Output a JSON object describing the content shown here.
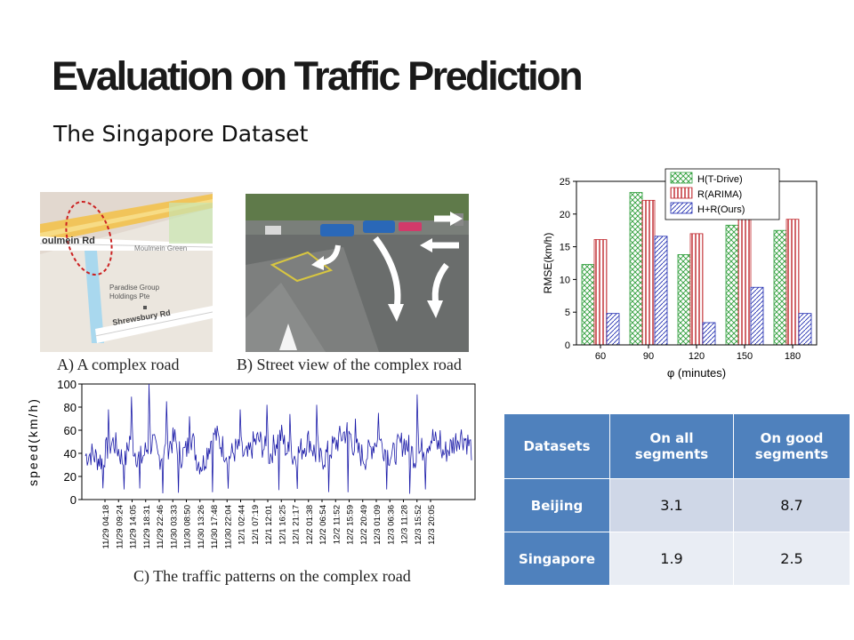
{
  "title": "Evaluation on Traffic Prediction",
  "subtitle": "The Singapore Dataset",
  "figures": {
    "map_labels": {
      "road1": "oulmein Rd",
      "green": "Moulmein Green",
      "group_l1": "Paradise Group",
      "group_l2": "Holdings Pte",
      "road2": "Shrewsbury Rd"
    },
    "caption_a": "A) A complex road",
    "caption_b": "B) Street view of the complex road",
    "caption_c": "C) The traffic patterns on the complex road"
  },
  "colors": {
    "table_header": "#4f81bd",
    "bar_green": "#2e9e3a",
    "bar_red": "#c0262c",
    "bar_blue": "#1f2bb0",
    "speed_line": "#1a1aa8"
  },
  "chart_data": [
    {
      "type": "bar",
      "categories": [
        "60",
        "90",
        "120",
        "150",
        "180"
      ],
      "series": [
        {
          "name": "H(T-Drive)",
          "values": [
            12.3,
            23.3,
            13.8,
            18.3,
            17.5
          ]
        },
        {
          "name": "R(ARIMA)",
          "values": [
            16.1,
            22.1,
            17.0,
            19.6,
            19.2
          ]
        },
        {
          "name": "H+R(Ours)",
          "values": [
            4.8,
            16.6,
            3.4,
            8.8,
            4.8
          ]
        }
      ],
      "xlabel": "φ (minutes)",
      "ylabel": "RMSE(km/h)",
      "ylim": [
        0,
        25
      ],
      "yticks": [
        "0",
        "5",
        "10",
        "15",
        "20",
        "25"
      ],
      "legend": "top"
    },
    {
      "type": "line",
      "ylabel": "speed(km/h)",
      "ylim": [
        0,
        100
      ],
      "yticks": [
        "0",
        "20",
        "40",
        "60",
        "80",
        "100"
      ],
      "xticks": [
        "11/29 04:18",
        "11/29 09:24",
        "11/29 14:05",
        "11/29 18:31",
        "11/29 22:46",
        "11/30 03:33",
        "11/30 08:50",
        "11/30 13:26",
        "11/30 17:48",
        "11/30 22:04",
        "12/1 02:44",
        "12/1 07:19",
        "12/1 12:01",
        "12/1 16:25",
        "12/1 21:17",
        "12/2 01:38",
        "12/2 06:54",
        "12/2 11:52",
        "12/2 15:59",
        "12/2 20:49",
        "12/3 01:09",
        "12/3 06:36",
        "12/3 11:28",
        "12/3 15:52",
        "12/3 20:05"
      ],
      "baseline": [
        38,
        40,
        36,
        34,
        45,
        50,
        42,
        30,
        55,
        40,
        35,
        44,
        50,
        36,
        40,
        48,
        52,
        38,
        42,
        55,
        34,
        30,
        46,
        58,
        50,
        42,
        38,
        44,
        40,
        36,
        48,
        52,
        44,
        38,
        50,
        56,
        42,
        36,
        40,
        46,
        52,
        40,
        34,
        38,
        44,
        50,
        56,
        60,
        46,
        40,
        36,
        44,
        52,
        48,
        40,
        38,
        46,
        50,
        44,
        36,
        42,
        48,
        54,
        46,
        40,
        44,
        50,
        56,
        52,
        44
      ],
      "spikes": [
        {
          "at": 0.06,
          "value": 78
        },
        {
          "at": 0.12,
          "value": 89
        },
        {
          "at": 0.165,
          "value": 100
        },
        {
          "at": 0.21,
          "value": 85
        },
        {
          "at": 0.27,
          "value": 72
        },
        {
          "at": 0.33,
          "value": 82
        },
        {
          "at": 0.4,
          "value": 78
        },
        {
          "at": 0.47,
          "value": 82
        },
        {
          "at": 0.53,
          "value": 74
        },
        {
          "at": 0.6,
          "value": 82
        },
        {
          "at": 0.7,
          "value": 70
        },
        {
          "at": 0.76,
          "value": 75
        },
        {
          "at": 0.86,
          "value": 91
        },
        {
          "at": 0.92,
          "value": 60
        }
      ],
      "dips": [
        0.045,
        0.1,
        0.14,
        0.2,
        0.24,
        0.33,
        0.37,
        0.5,
        0.55,
        0.63,
        0.68,
        0.78,
        0.84,
        0.88
      ]
    }
  ],
  "table": {
    "headers": [
      "Datasets",
      "On all segments",
      "On good segments"
    ],
    "rows": [
      {
        "name": "Beijing",
        "all": "3.1",
        "good": "8.7"
      },
      {
        "name": "Singapore",
        "all": "1.9",
        "good": "2.5"
      }
    ]
  }
}
